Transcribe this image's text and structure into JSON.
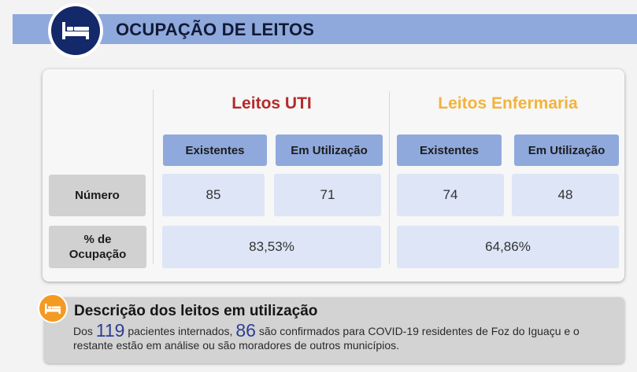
{
  "header": {
    "title": "OCUPAÇÃO DE LEITOS",
    "icon": "bed-icon"
  },
  "groups": {
    "uti": {
      "title": "Leitos UTI",
      "color": "#b22b2b"
    },
    "enfermaria": {
      "title": "Leitos Enfermaria",
      "color": "#f2b33d"
    }
  },
  "columns": {
    "existentes": "Existentes",
    "em_utilizacao": "Em Utilização"
  },
  "rows": {
    "numero": "Número",
    "ocupacao": "% de Ocupação"
  },
  "values": {
    "uti_existentes": "85",
    "uti_em_utilizacao": "71",
    "uti_ocupacao": "83,53%",
    "enf_existentes": "74",
    "enf_em_utilizacao": "48",
    "enf_ocupacao": "64,86%"
  },
  "description": {
    "title": "Descrição dos leitos em utilização",
    "text_1": "Dos",
    "internados": "119",
    "text_2": "pacientes internados,",
    "confirmados": "86",
    "text_3": "são confirmados para COVID-19 residentes de Foz do Iguaçu e o restante estão em análise ou são moradores de outros municípios.",
    "icon": "bed-icon"
  }
}
